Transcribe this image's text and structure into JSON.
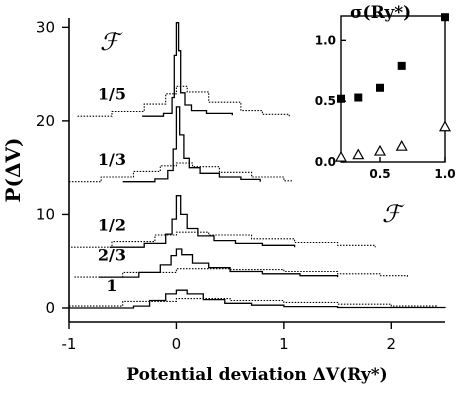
{
  "chart_data": {
    "type": "line",
    "main": {
      "xlabel": "Potential deviation ΔV(Ry*)",
      "ylabel": "P(ΔV)",
      "xlim": [
        -1,
        2.5
      ],
      "ylim": [
        -1.5,
        31
      ],
      "x_ticks": [
        -1,
        0,
        1,
        2
      ],
      "x_tick_labels": [
        "-1",
        "0",
        "1",
        "2"
      ],
      "y_ticks": [
        0,
        10,
        20,
        30
      ],
      "y_tick_labels": [
        "0",
        "10",
        "20",
        "30"
      ],
      "legend_symbol": "ℱ",
      "series": [
        {
          "label": "1/5",
          "offset": 20.5,
          "solid": {
            "x": [
              -0.32,
              -0.12,
              -0.04,
              -0.02,
              0.0,
              0.02,
              0.04,
              0.08,
              0.14,
              0.28,
              0.52
            ],
            "y": [
              0,
              0.3,
              2.0,
              6.5,
              10.0,
              7.0,
              2.5,
              1.2,
              0.6,
              0.3,
              0.1
            ]
          },
          "dotted": {
            "x": [
              -0.92,
              -0.6,
              -0.3,
              -0.1,
              0.0,
              0.1,
              0.3,
              0.6,
              0.8,
              1.05
            ],
            "y": [
              0,
              0.5,
              1.3,
              2.4,
              3.2,
              2.6,
              1.5,
              0.6,
              0.2,
              0
            ]
          }
        },
        {
          "label": "1/3",
          "offset": 13.5,
          "solid": {
            "x": [
              -0.5,
              -0.2,
              -0.08,
              -0.03,
              0.0,
              0.03,
              0.07,
              0.12,
              0.22,
              0.4,
              0.6,
              0.78
            ],
            "y": [
              0,
              0.3,
              1.2,
              3.5,
              8.0,
              5.0,
              2.5,
              1.5,
              0.9,
              0.5,
              0.25,
              0
            ]
          },
          "dotted": {
            "x": [
              -1.0,
              -0.7,
              -0.4,
              -0.15,
              0.0,
              0.15,
              0.4,
              0.7,
              1.0,
              1.08
            ],
            "y": [
              0,
              0.5,
              1.1,
              1.7,
              2.0,
              1.6,
              1.0,
              0.5,
              0.1,
              0
            ]
          }
        },
        {
          "label": "1/2",
          "offset": 6.5,
          "solid": {
            "x": [
              -0.62,
              -0.3,
              -0.1,
              -0.04,
              0.0,
              0.04,
              0.1,
              0.2,
              0.35,
              0.55,
              0.8,
              1.1
            ],
            "y": [
              0,
              0.4,
              1.4,
              3.0,
              5.5,
              3.5,
              2.0,
              1.2,
              0.7,
              0.4,
              0.2,
              0
            ]
          },
          "dotted": {
            "x": [
              -0.98,
              -0.6,
              -0.2,
              0.0,
              0.3,
              0.7,
              1.1,
              1.5,
              1.85
            ],
            "y": [
              0,
              0.6,
              1.3,
              1.6,
              1.3,
              0.9,
              0.5,
              0.2,
              0
            ]
          }
        },
        {
          "label": "2/3",
          "offset": 3.3,
          "solid": {
            "x": [
              -0.72,
              -0.35,
              -0.15,
              -0.05,
              0.0,
              0.05,
              0.15,
              0.3,
              0.5,
              0.8,
              1.15,
              1.5
            ],
            "y": [
              0,
              0.5,
              1.3,
              2.3,
              3.0,
              2.4,
              1.5,
              1.0,
              0.6,
              0.35,
              0.15,
              0
            ]
          },
          "dotted": {
            "x": [
              -0.95,
              -0.5,
              0.0,
              0.5,
              1.0,
              1.5,
              1.9,
              2.15
            ],
            "y": [
              0,
              0.5,
              0.9,
              0.8,
              0.6,
              0.35,
              0.15,
              0
            ]
          }
        },
        {
          "label": "1",
          "offset": 0,
          "solid": {
            "x": [
              -1.0,
              -0.4,
              -0.25,
              -0.1,
              0.0,
              0.1,
              0.25,
              0.45,
              0.7,
              1.0,
              1.5,
              2.5
            ],
            "y": [
              0,
              0.2,
              0.8,
              1.5,
              1.9,
              1.5,
              0.9,
              0.5,
              0.3,
              0.15,
              0.05,
              0
            ]
          },
          "dotted": {
            "x": [
              -1.0,
              -0.5,
              0.0,
              0.5,
              1.0,
              1.5,
              2.0,
              2.42
            ],
            "y": [
              0.2,
              0.7,
              1.0,
              0.8,
              0.6,
              0.4,
              0.2,
              0.1
            ]
          }
        }
      ]
    },
    "inset": {
      "type": "scatter",
      "ylabel": "σ(Ry*)",
      "xlabel": "ℱ",
      "xlim": [
        0.2,
        1.0
      ],
      "ylim": [
        0,
        1.2
      ],
      "x_ticks": [
        0.5,
        1.0
      ],
      "x_tick_labels": [
        "0.5",
        "1.0"
      ],
      "y_ticks": [
        0,
        0.5,
        1.0
      ],
      "y_tick_labels": [
        "0.0",
        "0.5",
        "1.0"
      ],
      "series": [
        {
          "marker": "square",
          "x": [
            0.2,
            0.333,
            0.5,
            0.667,
            1.0
          ],
          "y": [
            0.52,
            0.53,
            0.61,
            0.79,
            1.19
          ]
        },
        {
          "marker": "triangle",
          "x": [
            0.2,
            0.333,
            0.5,
            0.667,
            1.0
          ],
          "y": [
            0.04,
            0.06,
            0.09,
            0.13,
            0.29
          ]
        }
      ]
    }
  }
}
